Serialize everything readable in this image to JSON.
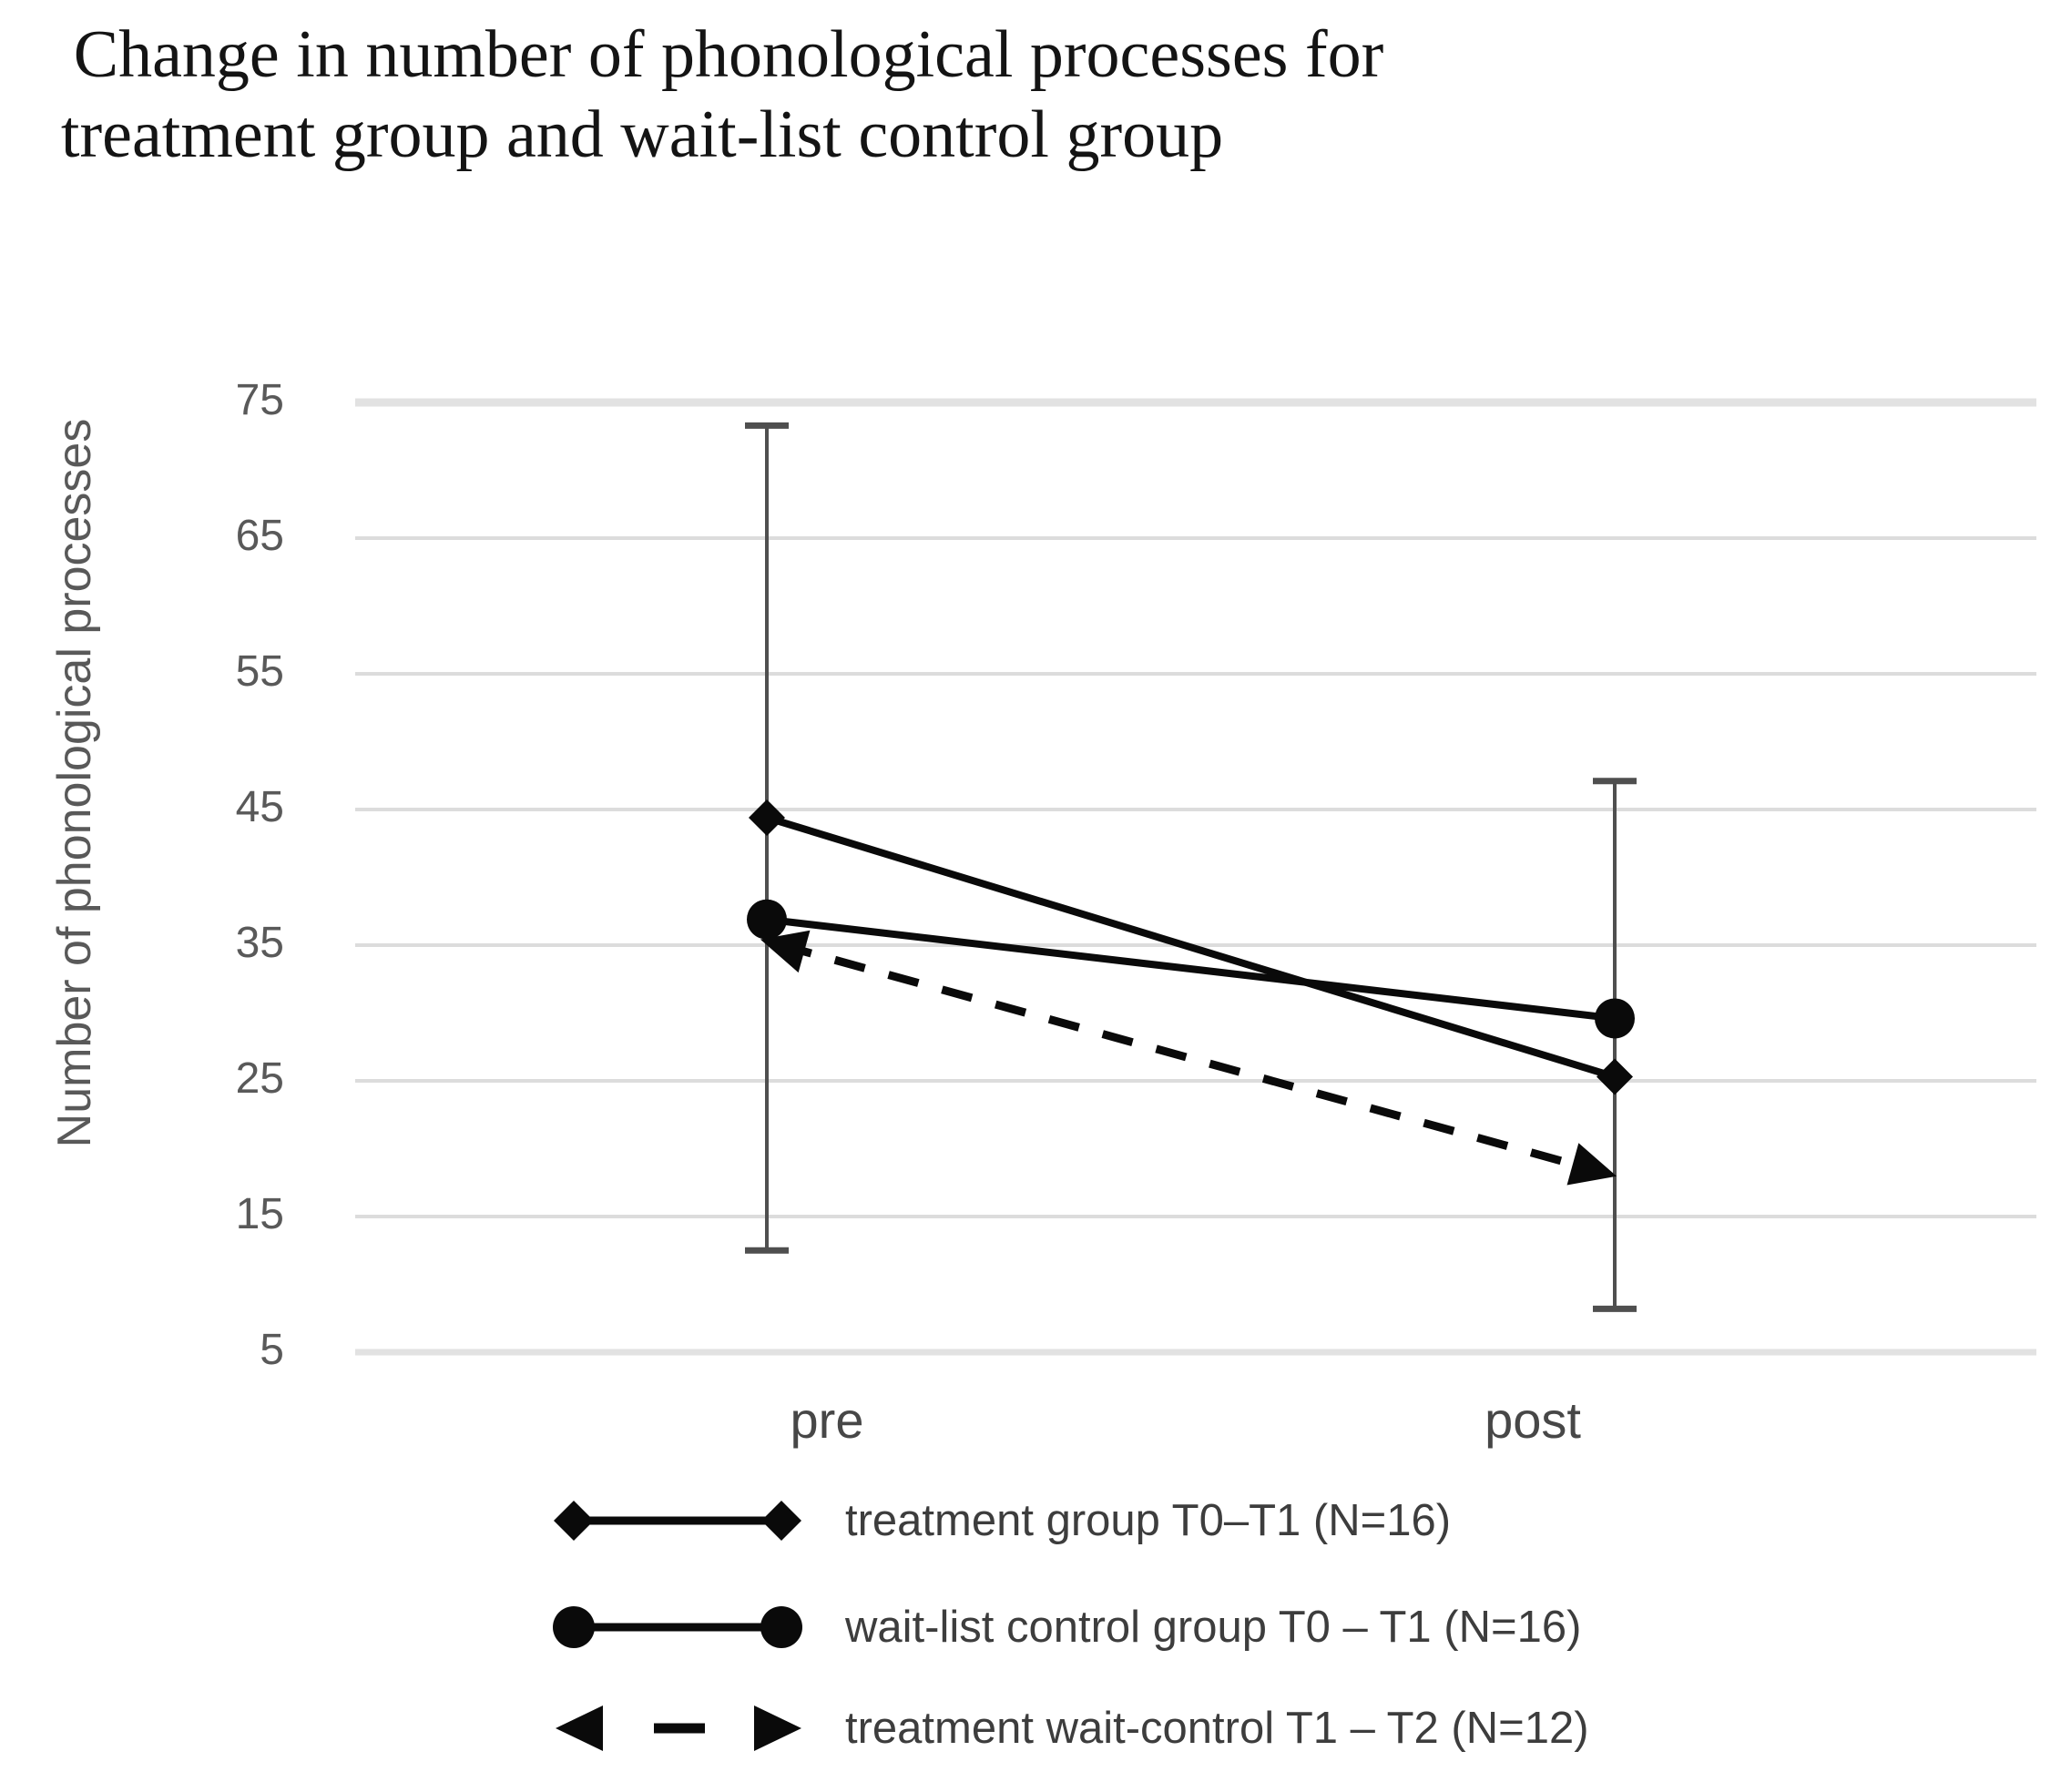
{
  "title_lines": [
    "Change in number of phonological processes for",
    "treatment group and wait-list control group"
  ],
  "chart_data": {
    "type": "line",
    "title": "Change in number of phonological processes for treatment group and wait-list control group",
    "ylabel": "Number of phonological processes",
    "xlabel": "",
    "yticks": [
      75,
      65,
      55,
      45,
      35,
      25,
      15,
      5
    ],
    "axis_range": {
      "y_top_gridline": 75,
      "y_bottom_gridline": 5
    },
    "grid": "horizontal",
    "legend_position": "bottom-left",
    "categories": [
      "pre",
      "post"
    ],
    "series": [
      {
        "name": "treatment group T0–T1 (N=16)",
        "marker": "diamond",
        "line": "solid",
        "values": [
          44.4,
          25.3
        ]
      },
      {
        "name": "wait-list control group T0 – T1 (N=16)",
        "marker": "circle",
        "line": "solid",
        "values": [
          36.9,
          29.6
        ]
      },
      {
        "name": "treatment wait-control T1 – T2 (N=12)",
        "marker": "arrow",
        "line": "dashed",
        "values": [
          35.0,
          18.4
        ]
      }
    ],
    "error_bars": [
      {
        "category": "pre",
        "high": 73.3,
        "low": 12.5
      },
      {
        "category": "post",
        "high": 47.1,
        "low": 8.2
      }
    ]
  },
  "colors": {
    "series": "#0a0a0a",
    "error_bar": "#4f4f4f",
    "gridline": "#dcdcdc",
    "gridline_major": "#e2e2e2",
    "tick_label": "#595959",
    "axis_label": "#595959",
    "x_label": "#474747",
    "legend_text": "#3d3d3d",
    "title": "#141414",
    "background": "#ffffff"
  }
}
